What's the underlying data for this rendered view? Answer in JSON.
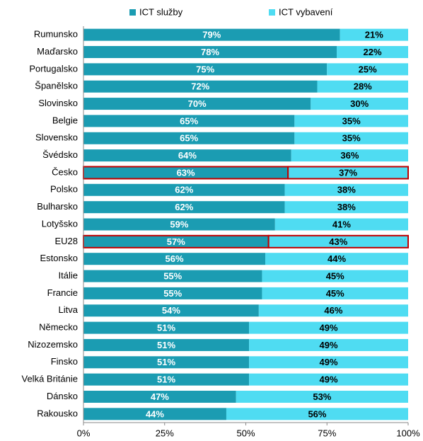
{
  "chart_data": {
    "type": "stacked_barh",
    "categories": [
      "Rumunsko",
      "Maďarsko",
      "Portugalsko",
      "Španělsko",
      "Slovinsko",
      "Belgie",
      "Slovensko",
      "Švédsko",
      "Česko",
      "Polsko",
      "Bulharsko",
      "Lotyšsko",
      "EU28",
      "Estonsko",
      "Itálie",
      "Francie",
      "Litva",
      "Německo",
      "Nizozemsko",
      "Finsko",
      "Velká Británie",
      "Dánsko",
      "Rakousko"
    ],
    "series": [
      {
        "name": "ICT služby",
        "color": "#1b9cb2",
        "values": [
          79,
          78,
          75,
          72,
          70,
          65,
          65,
          64,
          63,
          62,
          62,
          59,
          57,
          56,
          55,
          55,
          54,
          51,
          51,
          51,
          51,
          47,
          44
        ],
        "value_labels": [
          "79%",
          "78%",
          "75%",
          "72%",
          "70%",
          "65%",
          "65%",
          "64%",
          "63%",
          "62%",
          "62%",
          "59%",
          "57%",
          "56%",
          "55%",
          "55%",
          "54%",
          "51%",
          "51%",
          "51%",
          "51%",
          "47%",
          "44%"
        ]
      },
      {
        "name": "ICT vybavení",
        "color": "#4fdcf2",
        "values": [
          21,
          22,
          25,
          28,
          30,
          35,
          35,
          36,
          37,
          38,
          38,
          41,
          43,
          44,
          45,
          45,
          46,
          49,
          49,
          49,
          49,
          53,
          56
        ],
        "value_labels": [
          "21%",
          "22%",
          "25%",
          "28%",
          "30%",
          "35%",
          "35%",
          "36%",
          "37%",
          "38%",
          "38%",
          "41%",
          "43%",
          "44%",
          "45%",
          "45%",
          "46%",
          "49%",
          "49%",
          "49%",
          "49%",
          "53%",
          "56%"
        ]
      }
    ],
    "xlim": [
      0,
      100
    ],
    "xticks": [
      {
        "value": 0,
        "label": "0%"
      },
      {
        "value": 25,
        "label": "25%"
      },
      {
        "value": 50,
        "label": "50%"
      },
      {
        "value": 75,
        "label": "75%"
      },
      {
        "value": 100,
        "label": "100%"
      }
    ],
    "highlight": [
      "Česko",
      "EU28"
    ],
    "highlight_color": "#c00000",
    "legend": "top"
  }
}
